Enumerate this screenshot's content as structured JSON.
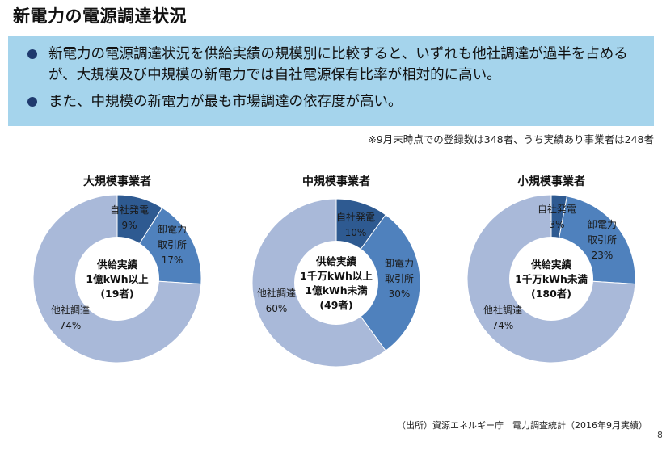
{
  "title": "新電力の電源調達状況",
  "summary": {
    "bullets": [
      "新電力の電源調達状況を供給実績の規模別に比較すると、いずれも他社調達が過半を占めるが、大規模及び中規模の新電力では自社電源保有比率が相対的に高い。",
      "また、中規模の新電力が最も市場調達の依存度が高い。"
    ]
  },
  "note": "※9月末時点での登録数は348者、うち実績あり事業者は248者",
  "source": "（出所）資源エネルギー庁　電力調査統計（2016年9月実績）",
  "page_number": "8",
  "colors": {
    "own": "#2e5a91",
    "jepx": "#4f81bd",
    "other": "#a9b9d9"
  },
  "chart_data": [
    {
      "type": "pie",
      "title": "大規模事業者",
      "center_text": [
        "供給実績",
        "1億kWh以上",
        "(19者)"
      ],
      "slices": [
        {
          "label": [
            "自社発電"
          ],
          "value": 9,
          "value_label": "9%"
        },
        {
          "label": [
            "卸電力",
            "取引所"
          ],
          "value": 17,
          "value_label": "17%"
        },
        {
          "label": [
            "他社調達"
          ],
          "value": 74,
          "value_label": "74%"
        }
      ]
    },
    {
      "type": "pie",
      "title": "中規模事業者",
      "center_text": [
        "供給実績",
        "1千万kWh以上",
        "1億kWh未満",
        "(49者)"
      ],
      "slices": [
        {
          "label": [
            "自社発電"
          ],
          "value": 10,
          "value_label": "10%"
        },
        {
          "label": [
            "卸電力",
            "取引所"
          ],
          "value": 30,
          "value_label": "30%"
        },
        {
          "label": [
            "他社調達"
          ],
          "value": 60,
          "value_label": "60%"
        }
      ]
    },
    {
      "type": "pie",
      "title": "小規模事業者",
      "center_text": [
        "供給実績",
        "1千万kWh未満",
        "(180者)"
      ],
      "slices": [
        {
          "label": [
            "自社発電"
          ],
          "value": 3,
          "value_label": "3%"
        },
        {
          "label": [
            "卸電力",
            "取引所"
          ],
          "value": 23,
          "value_label": "23%"
        },
        {
          "label": [
            "他社調達"
          ],
          "value": 74,
          "value_label": "74%"
        }
      ]
    }
  ]
}
